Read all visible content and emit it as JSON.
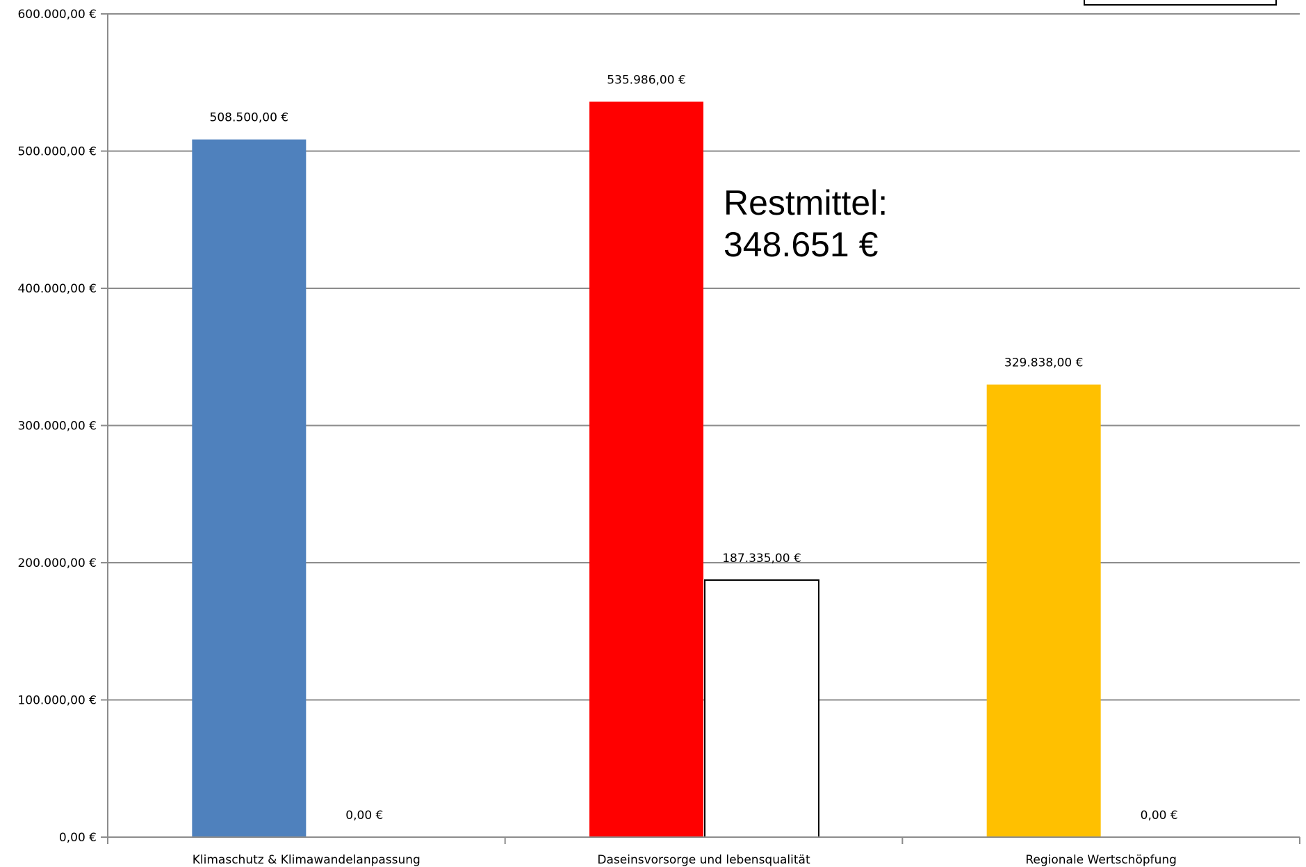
{
  "chart_data": {
    "type": "bar",
    "categories": [
      "Klimaschutz & Klimawandelanpassung",
      "Daseinsvorsorge und lebensqualität",
      "Regionale Wertschöpfung"
    ],
    "series": [
      {
        "values": [
          508500,
          535986,
          329838
        ],
        "colors": [
          "#4f81bd",
          "#ff0000",
          "#ffc000"
        ],
        "labels": [
          "508.500,00 €",
          "535.986,00 €",
          "329.838,00 €"
        ]
      },
      {
        "values": [
          0,
          187335,
          0
        ],
        "colors": [
          "#ffffff",
          "#ffffff",
          "#ffffff"
        ],
        "labels": [
          "0,00 €",
          "187.335,00 €",
          "0,00 €"
        ]
      }
    ],
    "ylim": [
      0,
      600000
    ],
    "yticks": [
      0,
      100000,
      200000,
      300000,
      400000,
      500000,
      600000
    ],
    "ytick_labels": [
      "0,00 €",
      "100.000,00 €",
      "200.000,00 €",
      "300.000,00 €",
      "400.000,00 €",
      "500.000,00 €",
      "600.000,00 €"
    ],
    "grid": true,
    "annotation": {
      "line1": "Restmittel:",
      "line2": "348.651 €"
    },
    "title": "",
    "xlabel": "",
    "ylabel": ""
  }
}
